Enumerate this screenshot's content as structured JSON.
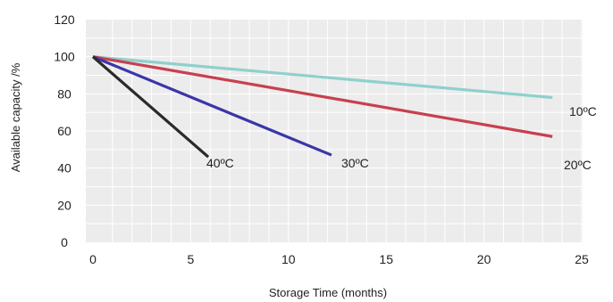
{
  "chart_data": {
    "type": "line",
    "xlabel": "Storage Time (months)",
    "ylabel": "Available capacity /%",
    "xlim": [
      0,
      25
    ],
    "ylim": [
      0,
      120
    ],
    "xticks": [
      0,
      5,
      10,
      15,
      20,
      25
    ],
    "yticks": [
      0,
      20,
      40,
      60,
      80,
      100,
      120
    ],
    "grid": true,
    "series": [
      {
        "name": "10ºC",
        "color": "#8fd0cc",
        "x": [
          0,
          23.5
        ],
        "y": [
          100,
          78
        ]
      },
      {
        "name": "20ºC",
        "color": "#c8404f",
        "x": [
          0,
          23.5
        ],
        "y": [
          100,
          57
        ]
      },
      {
        "name": "30ºC",
        "color": "#3a36a8",
        "x": [
          0,
          12.2
        ],
        "y": [
          100,
          47
        ]
      },
      {
        "name": "40ºC",
        "color": "#2a2a2a",
        "x": [
          0,
          5.9
        ],
        "y": [
          100,
          46
        ]
      }
    ]
  }
}
